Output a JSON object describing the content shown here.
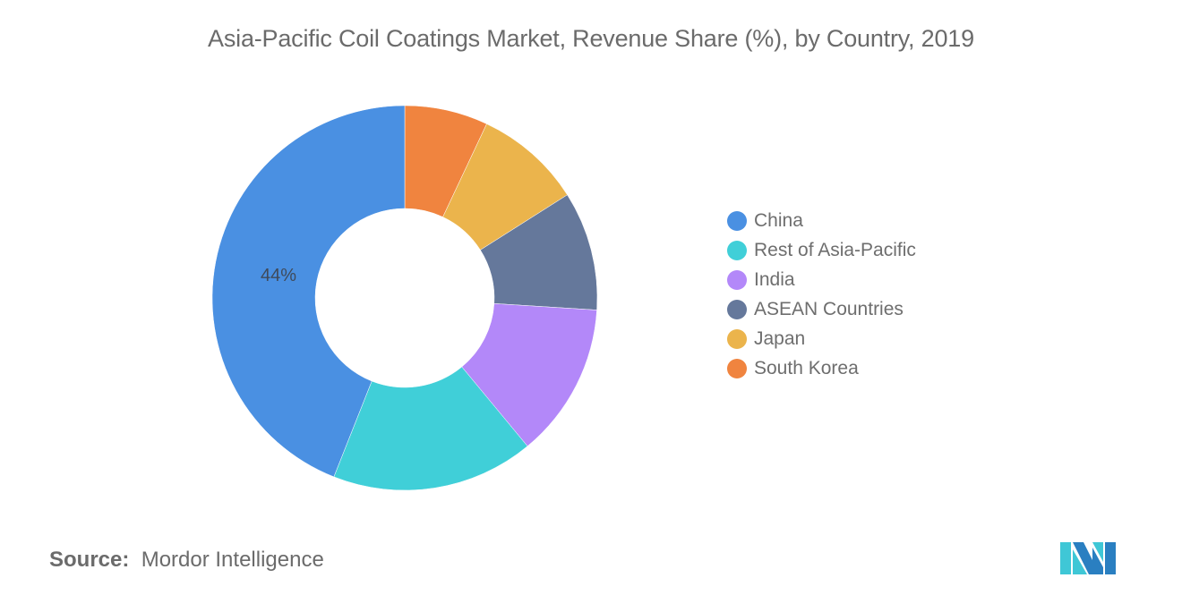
{
  "title": "Asia-Pacific Coil Coatings Market, Revenue Share (%), by Country, 2019",
  "source": {
    "label": "Source:",
    "value": "Mordor Intelligence"
  },
  "logo": {
    "icon": "mordor-intelligence-logo-icon",
    "colors": [
      "#2a7fc1",
      "#3fc7d6"
    ]
  },
  "chart_data": {
    "type": "pie",
    "subtype": "donut",
    "title": "Asia-Pacific Coil Coatings Market, Revenue Share (%), by Country, 2019",
    "categories": [
      "China",
      "Rest of Asia-Pacific",
      "India",
      "ASEAN Countries",
      "Japan",
      "South Korea"
    ],
    "values": [
      44,
      17,
      13,
      10,
      9,
      7
    ],
    "colors": [
      "#4a90e2",
      "#40cfd8",
      "#b388f9",
      "#65789b",
      "#ebb44c",
      "#f0843f"
    ],
    "data_labels": [
      {
        "category": "China",
        "text": "44%"
      }
    ],
    "legend_position": "right",
    "xlabel": "",
    "ylabel": ""
  },
  "legend": {
    "items": [
      {
        "label": "China",
        "color": "#4a90e2"
      },
      {
        "label": "Rest of Asia-Pacific",
        "color": "#40cfd8"
      },
      {
        "label": "India",
        "color": "#b388f9"
      },
      {
        "label": "ASEAN Countries",
        "color": "#65789b"
      },
      {
        "label": "Japan",
        "color": "#ebb44c"
      },
      {
        "label": "South Korea",
        "color": "#f0843f"
      }
    ]
  }
}
